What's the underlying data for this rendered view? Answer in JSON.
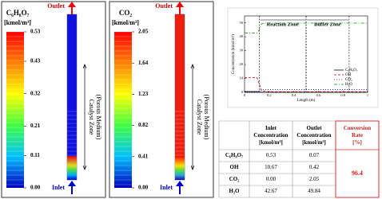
{
  "panels": [
    {
      "title": "C₆H₈O₇",
      "unit": "[kmol/m³]",
      "ticks": [
        0.53,
        0.43,
        0.32,
        0.21,
        0.11,
        {
          "value": 0,
          "label": "0.00"
        }
      ],
      "fill": "#1010e0",
      "outlet": "Outlet",
      "inlet": "Inlet",
      "zone": [
        "Catalyst Zone",
        "(Porous Medium)"
      ]
    },
    {
      "title": "CO₂",
      "unit": "[kmol/m³]",
      "ticks": [
        2.05,
        1.64,
        1.23,
        0.82,
        0.41,
        {
          "value": 0,
          "label": "0.00"
        }
      ],
      "fill": "#f02010",
      "outlet": "Outlet",
      "inlet": "Inlet",
      "zone": [
        "Catalyst Zone",
        "(Porous Medium)"
      ]
    }
  ],
  "chart_data": {
    "type": "line",
    "xlabel": "Length (m)",
    "ylabel": "Concentration (kmol/m³)",
    "x": [
      0,
      0.05,
      0.1,
      0.12,
      0.14,
      0.2,
      0.3,
      0.5,
      0.7,
      0.85,
      1.0
    ],
    "series": [
      {
        "name": "C₆H₈O₇",
        "color": "#000000",
        "dash": "",
        "values": [
          0.53,
          0.53,
          0.53,
          0.3,
          0.1,
          0.07,
          0.07,
          0.07,
          0.07,
          0.07,
          0.07
        ]
      },
      {
        "name": "OH",
        "color": "#d00000",
        "dash": "3 2",
        "values": [
          10.67,
          10.67,
          10.67,
          6,
          1,
          0.42,
          0.42,
          0.42,
          0.42,
          0.42,
          0.42
        ]
      },
      {
        "name": "CO₂",
        "color": "#0000d0",
        "dash": "1 2",
        "values": [
          0,
          0,
          0,
          1.2,
          2,
          2.05,
          2.05,
          2.05,
          2.05,
          2.05,
          2.05
        ]
      },
      {
        "name": "H₂O",
        "color": "#009000",
        "dash": "4 2 1 2",
        "values": [
          42.67,
          42.67,
          42.67,
          45,
          49.5,
          49.84,
          49.84,
          49.84,
          49.84,
          49.84,
          49.84
        ]
      }
    ],
    "zones": [
      {
        "label": "Reaction Zone",
        "x": [
          0.12,
          0.5
        ]
      },
      {
        "label": "Buffer Zone",
        "x": [
          0.5,
          0.85
        ]
      }
    ],
    "xlim": [
      0,
      1
    ],
    "ylim": [
      0,
      55
    ],
    "xticks": [
      0,
      0.2,
      0.4,
      0.6,
      0.8,
      1
    ],
    "yticks": [
      0,
      10,
      20,
      30,
      40,
      50
    ]
  },
  "table": {
    "header": [
      "Inlet Concentration [kmol/m³]",
      "Outlet Concentration [kmol/m³]",
      "Conversion Rate [%]"
    ],
    "rows": [
      [
        "C₆H₈O₇",
        "0.53",
        "0.07"
      ],
      [
        "OH",
        "10.67",
        "0.42"
      ],
      [
        "CO₂",
        "0.00",
        "2.05"
      ],
      [
        "H₂O",
        "42.67",
        "49.84"
      ]
    ],
    "conversion": "96.4"
  }
}
